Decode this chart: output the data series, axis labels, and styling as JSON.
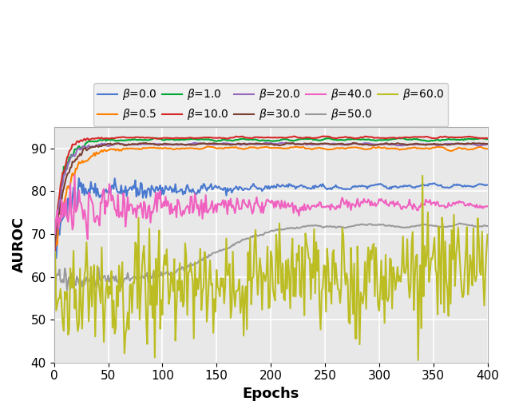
{
  "betas": [
    "0.0",
    "0.5",
    "1.0",
    "10.0",
    "20.0",
    "30.0",
    "40.0",
    "50.0",
    "60.0"
  ],
  "colors": {
    "0.0": "#4878cf",
    "0.5": "#ff8000",
    "1.0": "#00a832",
    "10.0": "#d62728",
    "20.0": "#9467bd",
    "30.0": "#7b4030",
    "40.0": "#f060c0",
    "50.0": "#999999",
    "60.0": "#bcbd22"
  },
  "xlim": [
    0,
    400
  ],
  "ylim": [
    40,
    95
  ],
  "xlabel": "Epochs",
  "ylabel": "AUROC",
  "yticks": [
    40,
    50,
    60,
    70,
    80,
    90
  ],
  "xticks": [
    0,
    50,
    100,
    150,
    200,
    250,
    300,
    350,
    400
  ],
  "figsize": [
    6.4,
    5.17
  ],
  "dpi": 100,
  "bg_color": "#e8e8e8",
  "grid_color": "white"
}
